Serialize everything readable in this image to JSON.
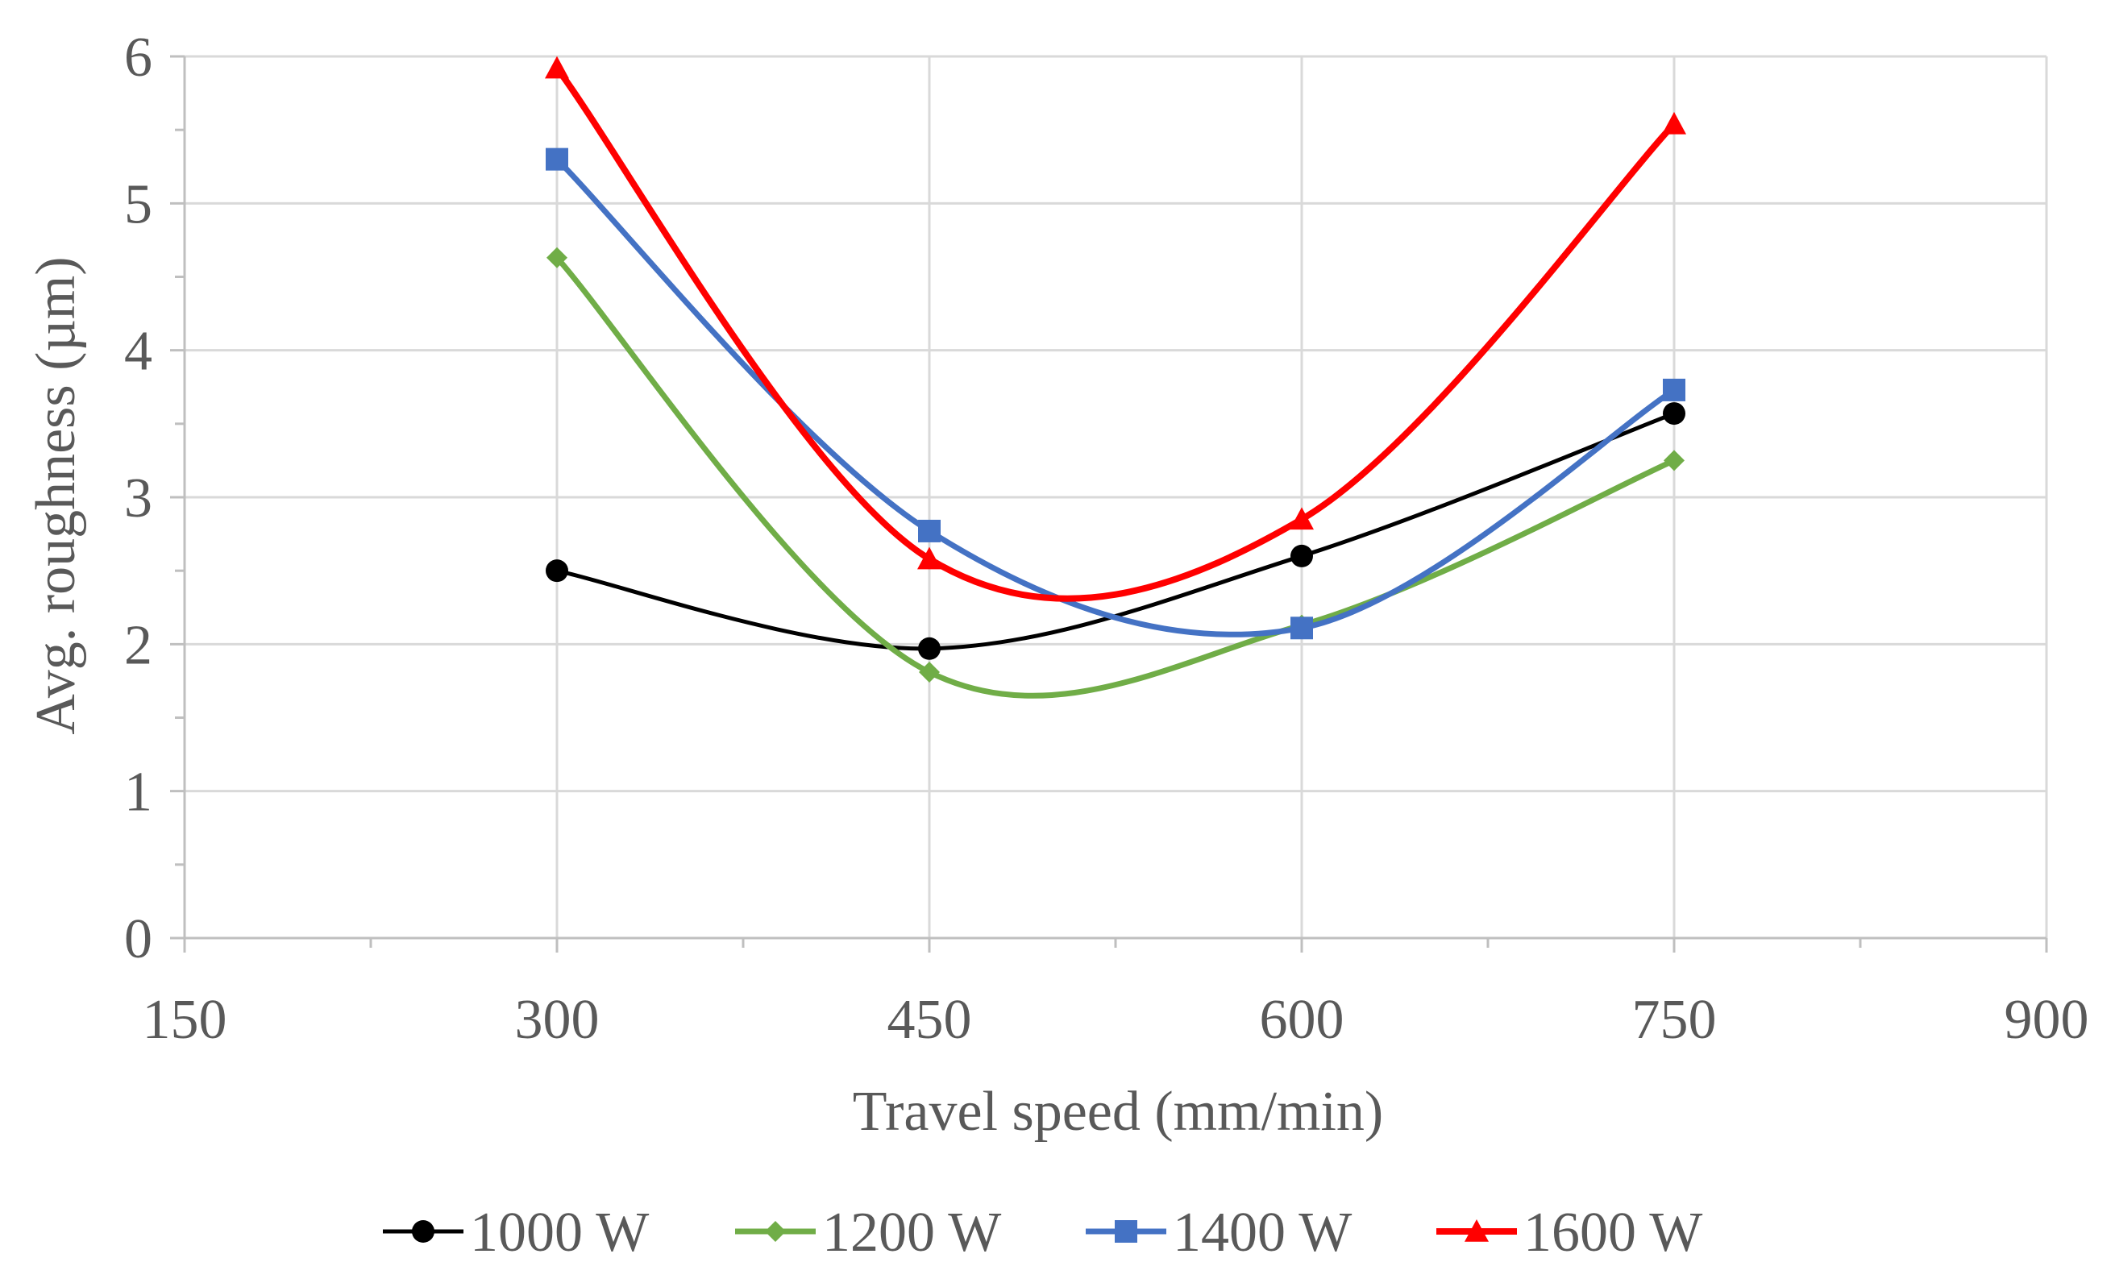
{
  "chart_data": {
    "type": "line",
    "title": "",
    "xlabel": "Travel speed (mm/min)",
    "ylabel": "Avg. roughness (µm)",
    "xlim": [
      150,
      900
    ],
    "ylim": [
      0,
      6
    ],
    "xticks": [
      150,
      300,
      450,
      600,
      750,
      900
    ],
    "yticks": [
      0,
      1,
      2,
      3,
      4,
      5,
      6
    ],
    "grid": true,
    "smooth": true,
    "legend_position": "bottom",
    "x": [
      300,
      450,
      600,
      750
    ],
    "series": [
      {
        "name": "1000 W",
        "color": "#000000",
        "marker": "circle",
        "values": [
          2.5,
          1.97,
          2.6,
          3.57
        ]
      },
      {
        "name": "1200 W",
        "color": "#70ad47",
        "marker": "diamond",
        "values": [
          4.63,
          1.81,
          2.13,
          3.25
        ]
      },
      {
        "name": "1400 W",
        "color": "#4472c4",
        "marker": "square",
        "values": [
          5.3,
          2.77,
          2.11,
          3.73
        ]
      },
      {
        "name": "1600 W",
        "color": "#ff0000",
        "marker": "triangle",
        "values": [
          5.92,
          2.58,
          2.85,
          5.54
        ]
      }
    ]
  }
}
